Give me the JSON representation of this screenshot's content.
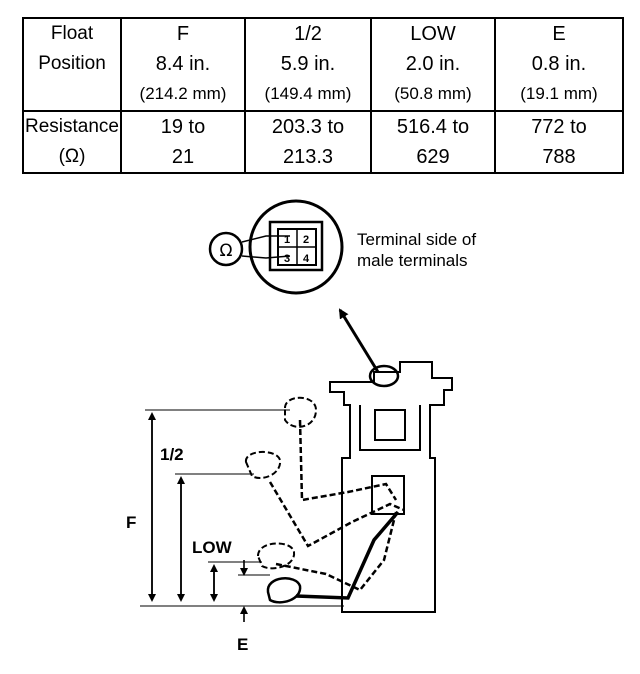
{
  "table": {
    "row_labels": {
      "float_position": [
        "Float",
        "Position"
      ],
      "resistance": [
        "Resistance",
        "(Ω)"
      ]
    },
    "columns": [
      {
        "position": "F",
        "inches": "8.4 in.",
        "mm": "(214.2 mm)",
        "res_min": "19 to",
        "res_max": "21"
      },
      {
        "position": "1/2",
        "inches": "5.9 in.",
        "mm": "(149.4 mm)",
        "res_min": "203.3 to",
        "res_max": "213.3"
      },
      {
        "position": "LOW",
        "inches": "2.0 in.",
        "mm": "(50.8 mm)",
        "res_min": "516.4 to",
        "res_max": "629"
      },
      {
        "position": "E",
        "inches": "0.8 in.",
        "mm": "(19.1 mm)",
        "res_min": "772 to",
        "res_max": "788"
      }
    ]
  },
  "diagram": {
    "connector_note": [
      "Terminal side of",
      "male terminals"
    ],
    "pins": [
      "1",
      "2",
      "3",
      "4"
    ],
    "ohmmeter_symbol": "Ω",
    "level_labels": {
      "f": "F",
      "half": "1/2",
      "low": "LOW",
      "e": "E"
    }
  }
}
